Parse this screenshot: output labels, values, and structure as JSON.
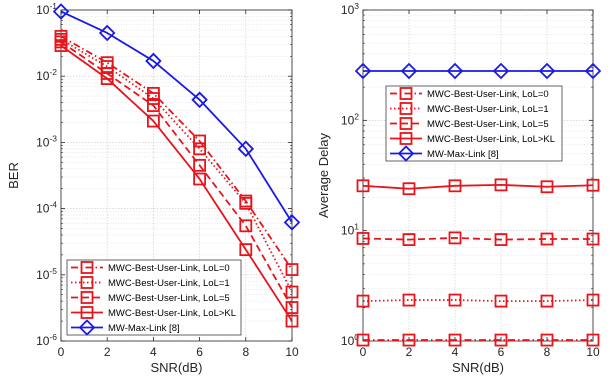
{
  "chart_data": [
    {
      "type": "line",
      "y_scale": "log",
      "x": [
        0,
        2,
        4,
        6,
        8,
        10
      ],
      "xlabel": "SNR(dB)",
      "ylabel": "BER",
      "xlim": [
        0,
        10
      ],
      "ylim": [
        1e-06,
        0.1
      ],
      "x_ticks": [
        "0",
        "2",
        "4",
        "6",
        "8",
        "10"
      ],
      "y_ticks": [
        {
          "base": "10",
          "exp": "-6",
          "value": 1e-06
        },
        {
          "base": "10",
          "exp": "-5",
          "value": 1e-05
        },
        {
          "base": "10",
          "exp": "-4",
          "value": 0.0001
        },
        {
          "base": "10",
          "exp": "-3",
          "value": 0.001
        },
        {
          "base": "10",
          "exp": "-2",
          "value": 0.01
        },
        {
          "base": "10",
          "exp": "-1",
          "value": 0.1
        }
      ],
      "grid": true,
      "legend_position": "bottom-left",
      "series": [
        {
          "name": "MWC-Best-User-Link, LoL=0",
          "color": "#e8141b",
          "style": "dash-dot",
          "marker": "square",
          "values": [
            0.04,
            0.016,
            0.0055,
            0.00105,
            0.00013,
            1.2e-05
          ]
        },
        {
          "name": "MWC-Best-User-Link, LoL=1",
          "color": "#e8141b",
          "style": "dotted",
          "marker": "square",
          "values": [
            0.036,
            0.014,
            0.0046,
            0.0008,
            0.00012,
            5.5e-06
          ]
        },
        {
          "name": "MWC-Best-User-Link, LoL=5",
          "color": "#e8141b",
          "style": "dashed",
          "marker": "square",
          "values": [
            0.033,
            0.011,
            0.0036,
            0.00045,
            5.5e-05,
            3.2e-06
          ]
        },
        {
          "name": "MWC-Best-User-Link, LoL>KL",
          "color": "#e8141b",
          "style": "solid",
          "marker": "square",
          "values": [
            0.029,
            0.0092,
            0.0021,
            0.00028,
            2.4e-05,
            2e-06
          ]
        },
        {
          "name": "MW-Max-Link [8]",
          "color": "#1a1ae6",
          "style": "solid",
          "marker": "diamond",
          "values": [
            0.095,
            0.045,
            0.017,
            0.0044,
            0.0008,
            6.2e-05
          ]
        }
      ]
    },
    {
      "type": "line",
      "y_scale": "log",
      "x": [
        0,
        2,
        4,
        6,
        8,
        10
      ],
      "xlabel": "SNR(dB)",
      "ylabel": "Average Delay",
      "xlim": [
        0,
        10
      ],
      "ylim": [
        1,
        1000
      ],
      "x_ticks": [
        "0",
        "2",
        "4",
        "6",
        "8",
        "10"
      ],
      "y_ticks": [
        {
          "base": "10",
          "exp": "0",
          "value": 1
        },
        {
          "base": "10",
          "exp": "1",
          "value": 10
        },
        {
          "base": "10",
          "exp": "2",
          "value": 100
        },
        {
          "base": "10",
          "exp": "3",
          "value": 1000
        }
      ],
      "grid": true,
      "legend_position": "upper-left",
      "series": [
        {
          "name": "MWC-Best-User-Link, LoL=0",
          "color": "#e8141b",
          "style": "dash-dot",
          "marker": "square",
          "values": [
            1.02,
            1.02,
            1.02,
            1.02,
            1.02,
            1.02
          ]
        },
        {
          "name": "MWC-Best-User-Link, LoL=1",
          "color": "#e8141b",
          "style": "dotted",
          "marker": "square",
          "values": [
            2.3,
            2.35,
            2.35,
            2.3,
            2.3,
            2.35
          ]
        },
        {
          "name": "MWC-Best-User-Link, LoL=5",
          "color": "#e8141b",
          "style": "dashed",
          "marker": "square",
          "values": [
            8.5,
            8.3,
            8.6,
            8.3,
            8.4,
            8.4
          ]
        },
        {
          "name": "MWC-Best-User-Link, LoL>KL",
          "color": "#e8141b",
          "style": "solid",
          "marker": "square",
          "values": [
            25.5,
            24,
            25.5,
            26,
            25,
            25.8
          ]
        },
        {
          "name": "MW-Max-Link [8]",
          "color": "#1a1ae6",
          "style": "solid",
          "marker": "diamond",
          "values": [
            280,
            280,
            280,
            280,
            280,
            280
          ]
        }
      ]
    }
  ]
}
